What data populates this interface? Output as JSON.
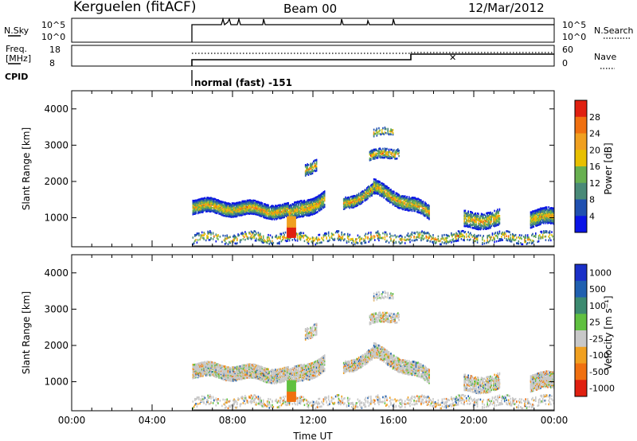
{
  "header": {
    "station": "Kerguelen (fitACF)",
    "beam": "Beam 00",
    "date": "12/Mar/2012"
  },
  "info_panels": {
    "nsky_label": "N.Sky",
    "nsearch_label": "N.Search",
    "log_top": "10^5",
    "log_bottom": "10^0",
    "freq_label_1": "Freq.",
    "freq_label_2": "[MHz]",
    "freq_ticks": [
      "18",
      "8"
    ],
    "nave_label": "Nave",
    "nave_ticks": [
      "60",
      "0"
    ],
    "cpid_label": "CPID",
    "cpid_text": "normal (fast) -151"
  },
  "chart_data": [
    {
      "type": "heatmap",
      "name": "power",
      "ylabel": "Slant Range [km]",
      "xlabel": "",
      "ylim": [
        200,
        4500
      ],
      "xlim": [
        0,
        24
      ],
      "yticks": [
        "1000",
        "2000",
        "3000",
        "4000"
      ],
      "colorbar": {
        "label": "Power [dB]",
        "ticks": [
          "4",
          "8",
          "12",
          "16",
          "20",
          "24",
          "28"
        ],
        "colors": [
          "#0a14e6",
          "#2050b0",
          "#4a8a78",
          "#68b050",
          "#e8c000",
          "#f0a020",
          "#f07010",
          "#e02010"
        ]
      }
    },
    {
      "type": "heatmap",
      "name": "velocity",
      "ylabel": "Slant Range [km]",
      "xlabel": "Time UT",
      "ylim": [
        200,
        4500
      ],
      "xlim": [
        0,
        24
      ],
      "yticks": [
        "1000",
        "2000",
        "3000",
        "4000"
      ],
      "xticks": [
        "00:00",
        "04:00",
        "08:00",
        "12:00",
        "16:00",
        "20:00",
        "00:00"
      ],
      "colorbar": {
        "label": "Velocity [m s⁻¹]",
        "ticks": [
          "1000",
          "500",
          "100",
          "25",
          "-25",
          "-100",
          "-500",
          "-1000"
        ],
        "colors": [
          "#1a30c8",
          "#2060b0",
          "#3c8a70",
          "#60c040",
          "#c8c8c8",
          "#f0a020",
          "#f07010",
          "#e02010"
        ]
      }
    }
  ]
}
